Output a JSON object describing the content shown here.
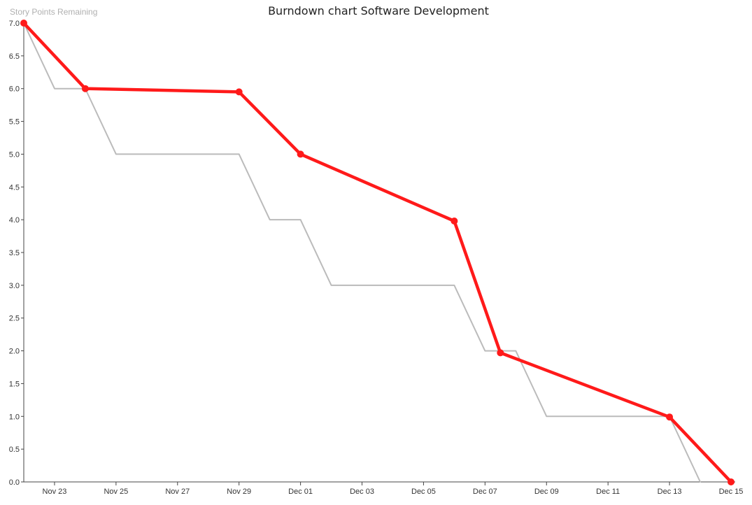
{
  "chart_data": {
    "type": "line",
    "title": "Burndown chart Software Development",
    "ylabel": "Story Points Remaining",
    "xlabel": "",
    "ylim": [
      0,
      7
    ],
    "yticks": [
      "0.0",
      "0.5",
      "1.0",
      "1.5",
      "2.0",
      "2.5",
      "3.0",
      "3.5",
      "4.0",
      "4.5",
      "5.0",
      "5.5",
      "6.0",
      "6.5",
      "7.0"
    ],
    "xlim": [
      "2015-11-22",
      "2015-12-15"
    ],
    "xticks": [
      {
        "date": "2015-11-23",
        "label": "Nov 23"
      },
      {
        "date": "2015-11-25",
        "label": "Nov 25"
      },
      {
        "date": "2015-11-27",
        "label": "Nov 27"
      },
      {
        "date": "2015-11-29",
        "label": "Nov 29"
      },
      {
        "date": "2015-12-01",
        "label": "Dec 01"
      },
      {
        "date": "2015-12-03",
        "label": "Dec 03"
      },
      {
        "date": "2015-12-05",
        "label": "Dec 05"
      },
      {
        "date": "2015-12-07",
        "label": "Dec 07"
      },
      {
        "date": "2015-12-09",
        "label": "Dec 09"
      },
      {
        "date": "2015-12-11",
        "label": "Dec 11"
      },
      {
        "date": "2015-12-13",
        "label": "Dec 13"
      },
      {
        "date": "2015-12-15",
        "label": "Dec 15"
      }
    ],
    "grid": false,
    "series": [
      {
        "color": "#bbbbbb",
        "style": "line",
        "points": [
          {
            "x": "2015-11-22",
            "y": 7.0
          },
          {
            "x": "2015-11-23",
            "y": 6.0
          },
          {
            "x": "2015-11-24",
            "y": 6.0
          },
          {
            "x": "2015-11-25",
            "y": 5.0
          },
          {
            "x": "2015-11-29",
            "y": 5.0
          },
          {
            "x": "2015-11-30",
            "y": 4.0
          },
          {
            "x": "2015-12-01",
            "y": 4.0
          },
          {
            "x": "2015-12-02",
            "y": 3.0
          },
          {
            "x": "2015-12-06",
            "y": 3.0
          },
          {
            "x": "2015-12-07",
            "y": 2.0
          },
          {
            "x": "2015-12-08",
            "y": 2.0
          },
          {
            "x": "2015-12-09",
            "y": 1.0
          },
          {
            "x": "2015-12-13",
            "y": 1.0
          },
          {
            "x": "2015-12-14",
            "y": 0.0
          }
        ]
      },
      {
        "color": "#ff1a1a",
        "style": "line-markers",
        "points": [
          {
            "x": "2015-11-22",
            "y": 7.0
          },
          {
            "x": "2015-11-24",
            "y": 6.0
          },
          {
            "x": "2015-11-29",
            "y": 5.95
          },
          {
            "x": "2015-12-01",
            "y": 5.0
          },
          {
            "x": "2015-12-06",
            "y": 3.98
          },
          {
            "x": "2015-12-07 12:00",
            "y": 1.97
          },
          {
            "x": "2015-12-13",
            "y": 0.99
          },
          {
            "x": "2015-12-15",
            "y": 0.0
          }
        ]
      }
    ]
  }
}
